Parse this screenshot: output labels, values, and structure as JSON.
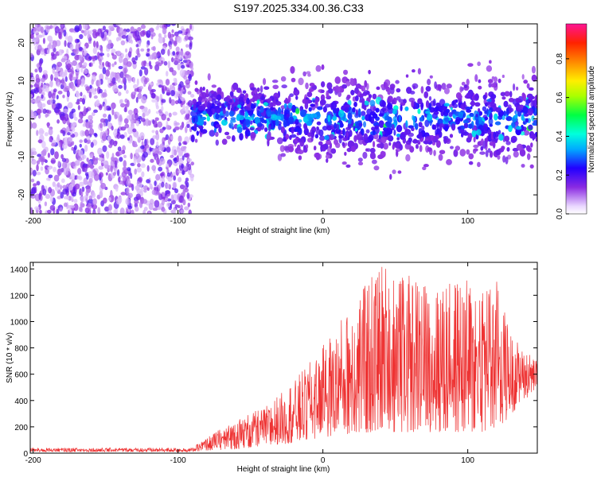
{
  "title": "S197.2025.334.00.36.C33",
  "chart_data": [
    {
      "type": "heatmap",
      "title": "S197.2025.334.00.36.C33",
      "xlabel": "Height of straight line (km)",
      "ylabel": "Frequency (Hz)",
      "xlim": [
        -202,
        148
      ],
      "ylim": [
        -25,
        25
      ],
      "xticks": [
        -200,
        -100,
        0,
        100
      ],
      "yticks": [
        -20,
        -10,
        0,
        10,
        20
      ],
      "colorbar": {
        "label": "Normalized spectral amplitude",
        "range": [
          0,
          0.98
        ],
        "ticks": [
          0.0,
          0.2,
          0.4,
          0.6,
          0.8
        ]
      },
      "regions": [
        {
          "name": "diffuse",
          "x_range": [
            -202,
            -90
          ],
          "freq_range": [
            -25,
            25
          ],
          "amplitude": [
            0.05,
            0.2
          ]
        },
        {
          "name": "band",
          "x_range": [
            -90,
            148
          ],
          "freq_range": [
            -18,
            18
          ],
          "amplitude": [
            0.05,
            0.55
          ]
        }
      ]
    },
    {
      "type": "line",
      "xlabel": "Height of straight line (km)",
      "ylabel": "SNR (10 * v/v)",
      "xlim": [
        -202,
        148
      ],
      "ylim": [
        0,
        1450
      ],
      "xticks": [
        -200,
        -100,
        0,
        100
      ],
      "yticks": [
        0,
        200,
        400,
        600,
        800,
        1000,
        1200,
        1400
      ],
      "color": "#ee3333",
      "envelope": {
        "x": [
          -202,
          -90,
          -80,
          -60,
          -40,
          -20,
          0,
          20,
          40,
          60,
          80,
          100,
          120,
          130,
          148
        ],
        "low": [
          10,
          10,
          20,
          30,
          50,
          80,
          120,
          150,
          160,
          160,
          160,
          160,
          160,
          300,
          500
        ],
        "high": [
          40,
          40,
          120,
          260,
          350,
          550,
          820,
          1150,
          1450,
          1350,
          1300,
          1320,
          1350,
          900,
          700
        ]
      }
    }
  ]
}
